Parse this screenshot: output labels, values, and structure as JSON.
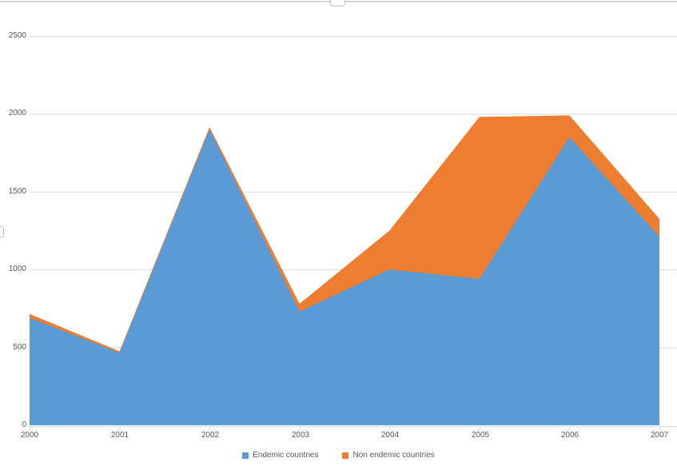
{
  "chart_data": {
    "type": "area",
    "stacked": true,
    "title": "",
    "xlabel": "",
    "ylabel": "",
    "categories": [
      "2000",
      "2001",
      "2002",
      "2003",
      "2004",
      "2005",
      "2006",
      "2007"
    ],
    "series": [
      {
        "name": "Endemic countries",
        "color": "#5B9BD5",
        "values": [
          690,
          465,
          1900,
          730,
          1000,
          940,
          1850,
          1210
        ]
      },
      {
        "name": "Non endemic countries",
        "color": "#ED7D31",
        "values": [
          25,
          10,
          15,
          50,
          250,
          1040,
          140,
          115
        ]
      }
    ],
    "ylim": [
      0,
      2500
    ],
    "yticks": [
      0,
      500,
      1000,
      1500,
      2000,
      2500
    ],
    "grid": true,
    "legend_position": "bottom",
    "gridline_color": "#D9D9D9",
    "axis_color": "#D9D9D9",
    "axis_label_color": "#595959",
    "selection_border_color": "#D6D6D6"
  }
}
